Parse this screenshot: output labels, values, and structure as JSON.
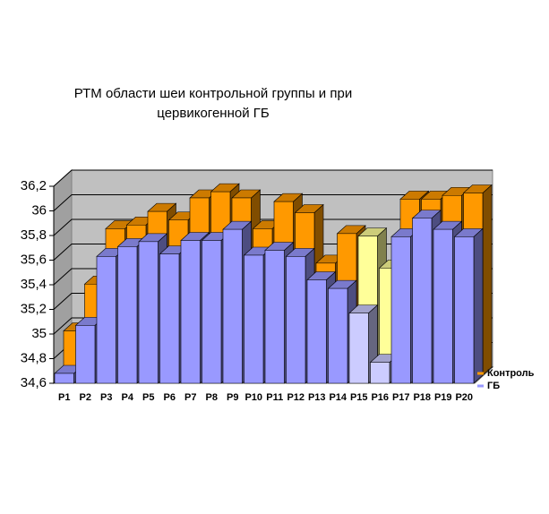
{
  "chart_data": {
    "type": "bar3d",
    "title": "РТМ области шеи контрольной группы и при цервикогенной ГБ",
    "categories": [
      "P1",
      "P2",
      "P3",
      "P4",
      "P5",
      "P6",
      "P7",
      "P8",
      "P9",
      "P10",
      "P11",
      "P12",
      "P13",
      "P14",
      "P15",
      "P16",
      "P17",
      "P18",
      "P19",
      "P20"
    ],
    "series": [
      {
        "name": "ГБ",
        "color": "#9999ff",
        "colors": [
          "#9999ff",
          "#9999ff",
          "#9999ff",
          "#9999ff",
          "#9999ff",
          "#9999ff",
          "#9999ff",
          "#9999ff",
          "#9999ff",
          "#9999ff",
          "#9999ff",
          "#9999ff",
          "#9999ff",
          "#9999ff",
          "#ccccff",
          "#ccccff",
          "#9999ff",
          "#9999ff",
          "#9999ff",
          "#9999ff"
        ],
        "values": [
          34.68,
          35.07,
          35.63,
          35.71,
          35.75,
          35.65,
          35.76,
          35.76,
          35.85,
          35.64,
          35.68,
          35.63,
          35.44,
          35.37,
          35.17,
          34.77,
          35.79,
          35.94,
          35.85,
          35.79
        ]
      },
      {
        "name": "Контроль",
        "color": "#ff9900",
        "colors": [
          "#ff9900",
          "#ff9900",
          "#ff9900",
          "#ff9900",
          "#ff9900",
          "#ff9900",
          "#ff9900",
          "#ff9900",
          "#ff9900",
          "#ff9900",
          "#ff9900",
          "#ff9900",
          "#ff9900",
          "#ff9900",
          "#ffff99",
          "#ffff99",
          "#ff9900",
          "#ff9900",
          "#ff9900",
          "#ff9900"
        ],
        "values": [
          34.96,
          35.34,
          35.79,
          35.82,
          35.93,
          35.86,
          36.04,
          36.09,
          36.04,
          35.79,
          36.01,
          35.92,
          35.51,
          35.75,
          35.73,
          35.47,
          36.03,
          36.03,
          36.06,
          36.08
        ]
      }
    ],
    "ylim": [
      34.6,
      36.2
    ],
    "yticks": [
      {
        "value": 34.6,
        "label": "34,6"
      },
      {
        "value": 34.8,
        "label": "34,8"
      },
      {
        "value": 35,
        "label": "35"
      },
      {
        "value": 35.2,
        "label": "35,2"
      },
      {
        "value": 35.4,
        "label": "35,4"
      },
      {
        "value": 35.6,
        "label": "35,6"
      },
      {
        "value": 35.8,
        "label": "35,8"
      },
      {
        "value": 36,
        "label": "36"
      },
      {
        "value": 36.2,
        "label": "36,2"
      }
    ],
    "grid": true
  }
}
